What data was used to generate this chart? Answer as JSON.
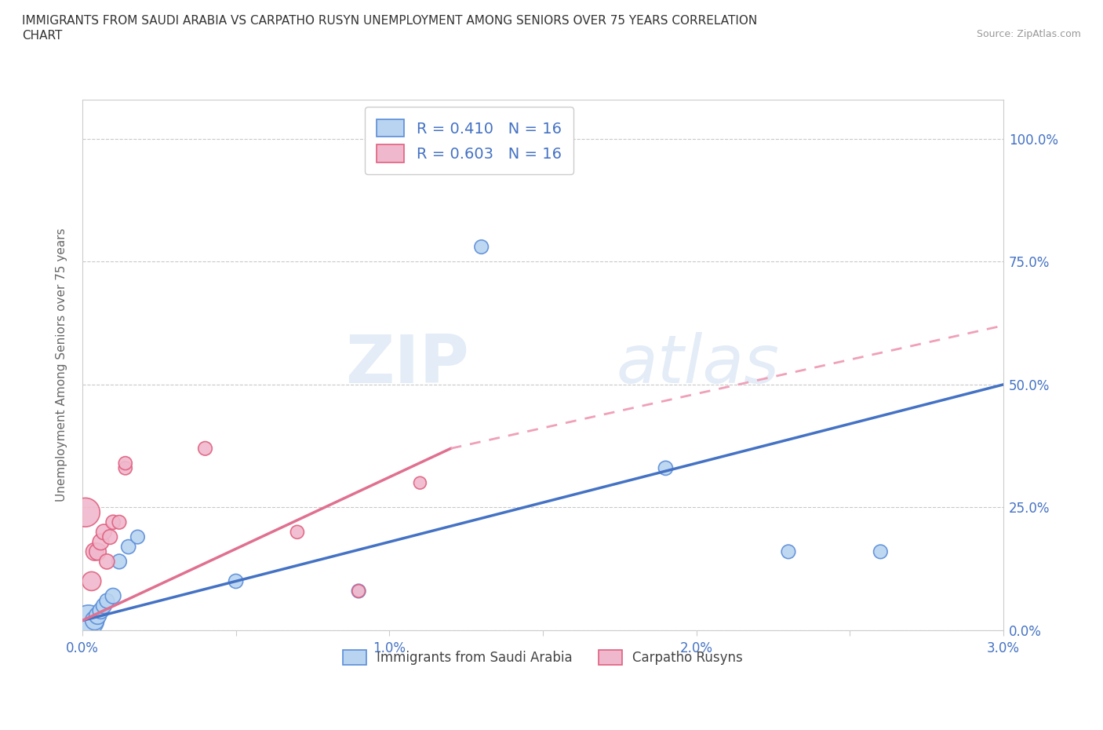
{
  "title": "IMMIGRANTS FROM SAUDI ARABIA VS CARPATHO RUSYN UNEMPLOYMENT AMONG SENIORS OVER 75 YEARS CORRELATION\nCHART",
  "source": "Source: ZipAtlas.com",
  "ylabel": "Unemployment Among Seniors over 75 years",
  "xlim": [
    0.0,
    0.03
  ],
  "ylim": [
    0.0,
    1.05
  ],
  "xticks": [
    0.0,
    0.005,
    0.01,
    0.015,
    0.02,
    0.025,
    0.03
  ],
  "xtick_labels": [
    "0.0%",
    "",
    "1.0%",
    "",
    "2.0%",
    "",
    "3.0%"
  ],
  "ytick_labels": [
    "0.0%",
    "25.0%",
    "50.0%",
    "75.0%",
    "100.0%"
  ],
  "yticks": [
    0.0,
    0.25,
    0.5,
    0.75,
    1.0
  ],
  "watermark_zip": "ZIP",
  "watermark_atlas": "atlas",
  "blue_R": 0.41,
  "blue_N": 16,
  "pink_R": 0.603,
  "pink_N": 16,
  "blue_color": "#b8d4f0",
  "pink_color": "#f0b8cc",
  "blue_edge_color": "#5b8dd9",
  "pink_edge_color": "#e06080",
  "blue_line_color": "#4472c4",
  "pink_line_color": "#e07090",
  "pink_dash_color": "#f0a0b8",
  "grid_color": "#bbbbbb",
  "blue_points": [
    [
      0.0002,
      0.02,
      800
    ],
    [
      0.0004,
      0.02,
      300
    ],
    [
      0.0005,
      0.03,
      250
    ],
    [
      0.0006,
      0.04,
      220
    ],
    [
      0.0007,
      0.05,
      200
    ],
    [
      0.0008,
      0.06,
      180
    ],
    [
      0.001,
      0.07,
      200
    ],
    [
      0.0012,
      0.14,
      180
    ],
    [
      0.0015,
      0.17,
      170
    ],
    [
      0.0018,
      0.19,
      160
    ],
    [
      0.005,
      0.1,
      170
    ],
    [
      0.009,
      0.08,
      160
    ],
    [
      0.013,
      0.78,
      160
    ],
    [
      0.019,
      0.33,
      170
    ],
    [
      0.023,
      0.16,
      160
    ],
    [
      0.026,
      0.16,
      160
    ]
  ],
  "pink_points": [
    [
      0.0001,
      0.24,
      700
    ],
    [
      0.0003,
      0.1,
      300
    ],
    [
      0.0004,
      0.16,
      260
    ],
    [
      0.0005,
      0.16,
      240
    ],
    [
      0.0006,
      0.18,
      220
    ],
    [
      0.0007,
      0.2,
      200
    ],
    [
      0.0008,
      0.14,
      190
    ],
    [
      0.0009,
      0.19,
      180
    ],
    [
      0.001,
      0.22,
      170
    ],
    [
      0.0012,
      0.22,
      160
    ],
    [
      0.0014,
      0.33,
      150
    ],
    [
      0.0014,
      0.34,
      150
    ],
    [
      0.004,
      0.37,
      160
    ],
    [
      0.007,
      0.2,
      150
    ],
    [
      0.009,
      0.08,
      140
    ],
    [
      0.011,
      0.3,
      130
    ]
  ],
  "blue_line": [
    0.0,
    0.02,
    0.03,
    0.5
  ],
  "pink_line": [
    0.0,
    0.02,
    0.012,
    0.37
  ],
  "pink_dash_line": [
    0.012,
    0.37,
    0.03,
    0.62
  ],
  "background_color": "#ffffff"
}
